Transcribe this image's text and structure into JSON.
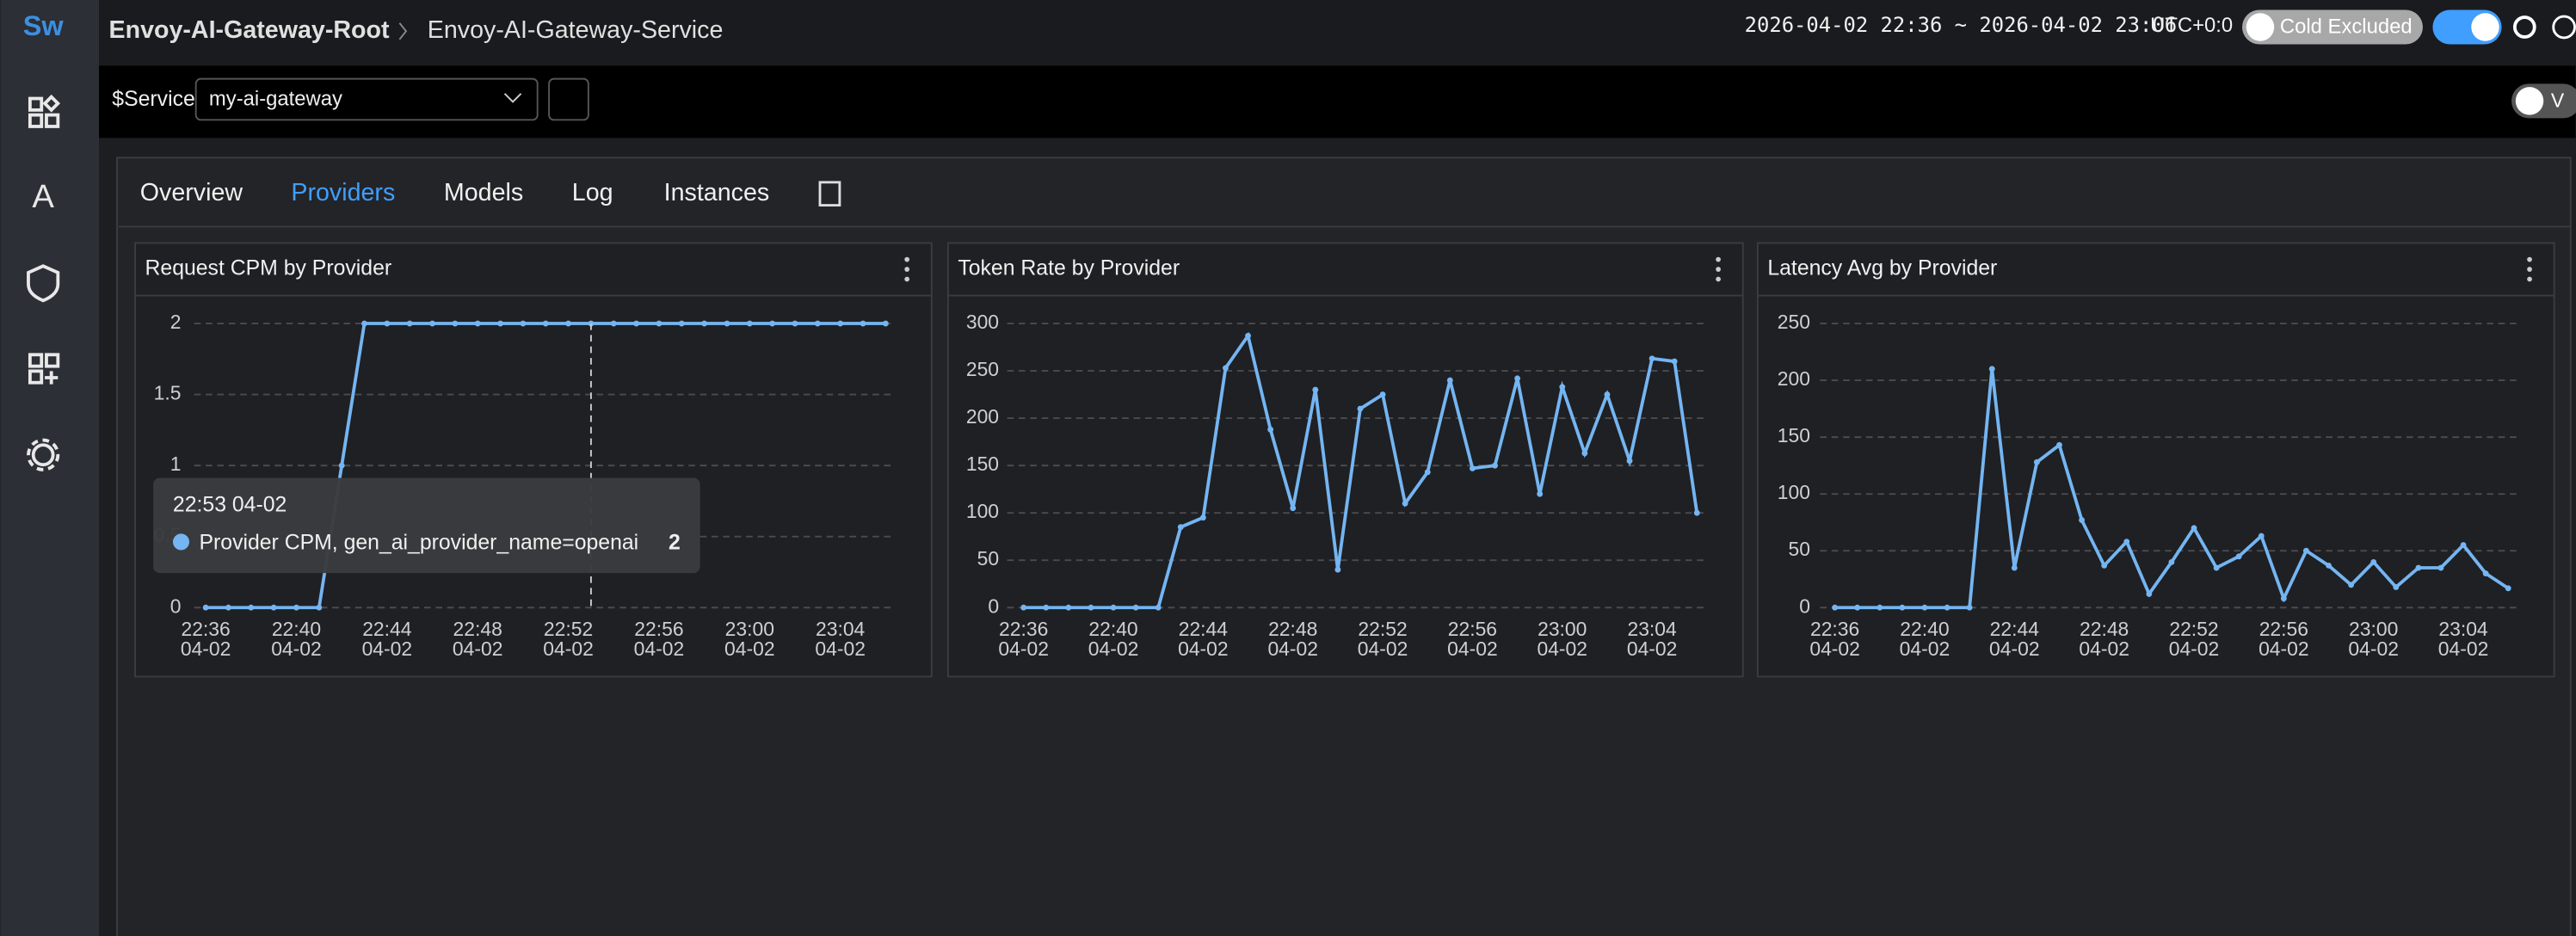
{
  "header": {
    "logo": "Sw",
    "breadcrumb_root": "Envoy-AI-Gateway-Root",
    "breadcrumb_current": "Envoy-AI-Gateway-Service",
    "time_range": "2026-04-02 22:36 ~ 2026-04-02 23:06",
    "timezone": "UTC+0:0",
    "cold_toggle": "Cold Excluded"
  },
  "toolbar": {
    "service_label": "$Service",
    "service_value": "my-ai-gateway",
    "toggle_label": "V"
  },
  "tabs": [
    "Overview",
    "Providers",
    "Models",
    "Log",
    "Instances"
  ],
  "chart_data": [
    {
      "type": "line",
      "title": "Request CPM by Provider",
      "categories": [
        "22:36",
        null,
        null,
        null,
        "22:40",
        null,
        null,
        null,
        "22:44",
        null,
        null,
        null,
        "22:48",
        null,
        null,
        null,
        "22:52",
        null,
        null,
        null,
        "22:56",
        null,
        null,
        null,
        "23:00",
        null,
        null,
        null,
        "23:04",
        null,
        null
      ],
      "category_sublabels": [
        "04-02",
        null,
        null,
        null,
        "04-02",
        null,
        null,
        null,
        "04-02",
        null,
        null,
        null,
        "04-02",
        null,
        null,
        null,
        "04-02",
        null,
        null,
        null,
        "04-02",
        null,
        null,
        null,
        "04-02",
        null,
        null,
        null,
        "04-02",
        null,
        null
      ],
      "series": [
        {
          "name": "Provider CPM, gen_ai_provider_name=openai",
          "color": "#74b5f2",
          "values": [
            0,
            0,
            0,
            0,
            0,
            0,
            1,
            2,
            2,
            2,
            2,
            2,
            2,
            2,
            2,
            2,
            2,
            2,
            2,
            2,
            2,
            2,
            2,
            2,
            2,
            2,
            2,
            2,
            2,
            2,
            2
          ]
        }
      ],
      "ylim": [
        0,
        2
      ],
      "yticks": [
        0,
        0.5,
        1,
        1.5,
        2
      ],
      "grid": true,
      "tooltip": {
        "title": "22:53 04-02",
        "value": 2
      }
    },
    {
      "type": "line",
      "title": "Token Rate by Provider",
      "categories": [
        "22:36",
        null,
        null,
        null,
        "22:40",
        null,
        null,
        null,
        "22:44",
        null,
        null,
        null,
        "22:48",
        null,
        null,
        null,
        "22:52",
        null,
        null,
        null,
        "22:56",
        null,
        null,
        null,
        "23:00",
        null,
        null,
        null,
        "23:04",
        null,
        null
      ],
      "category_sublabels": [
        "04-02",
        null,
        null,
        null,
        "04-02",
        null,
        null,
        null,
        "04-02",
        null,
        null,
        null,
        "04-02",
        null,
        null,
        null,
        "04-02",
        null,
        null,
        null,
        "04-02",
        null,
        null,
        null,
        "04-02",
        null,
        null,
        null,
        "04-02",
        null,
        null
      ],
      "series": [
        {
          "color": "#74b5f2",
          "values": [
            0,
            0,
            0,
            0,
            0,
            0,
            0,
            85,
            95,
            253,
            287,
            188,
            105,
            230,
            40,
            210,
            225,
            110,
            143,
            240,
            147,
            150,
            242,
            120,
            233,
            163,
            225,
            155,
            263,
            260,
            100
          ]
        }
      ],
      "ylim": [
        0,
        300
      ],
      "yticks": [
        0,
        50,
        100,
        150,
        200,
        250,
        300
      ],
      "grid": true
    },
    {
      "type": "line",
      "title": "Latency Avg by Provider",
      "categories": [
        "22:36",
        null,
        null,
        null,
        "22:40",
        null,
        null,
        null,
        "22:44",
        null,
        null,
        null,
        "22:48",
        null,
        null,
        null,
        "22:52",
        null,
        null,
        null,
        "22:56",
        null,
        null,
        null,
        "23:00",
        null,
        null,
        null,
        "23:04",
        null,
        null
      ],
      "category_sublabels": [
        "04-02",
        null,
        null,
        null,
        "04-02",
        null,
        null,
        null,
        "04-02",
        null,
        null,
        null,
        "04-02",
        null,
        null,
        null,
        "04-02",
        null,
        null,
        null,
        "04-02",
        null,
        null,
        null,
        "04-02",
        null,
        null,
        null,
        "04-02",
        null,
        null
      ],
      "series": [
        {
          "color": "#74b5f2",
          "values": [
            0,
            0,
            0,
            0,
            0,
            0,
            0,
            210,
            35,
            128,
            143,
            77,
            37,
            58,
            12,
            40,
            70,
            35,
            45,
            63,
            8,
            50,
            37,
            20,
            40,
            18,
            35,
            35,
            55,
            30,
            17
          ]
        }
      ],
      "ylim": [
        0,
        250
      ],
      "yticks": [
        0,
        50,
        100,
        150,
        200,
        250
      ],
      "grid": true
    }
  ]
}
